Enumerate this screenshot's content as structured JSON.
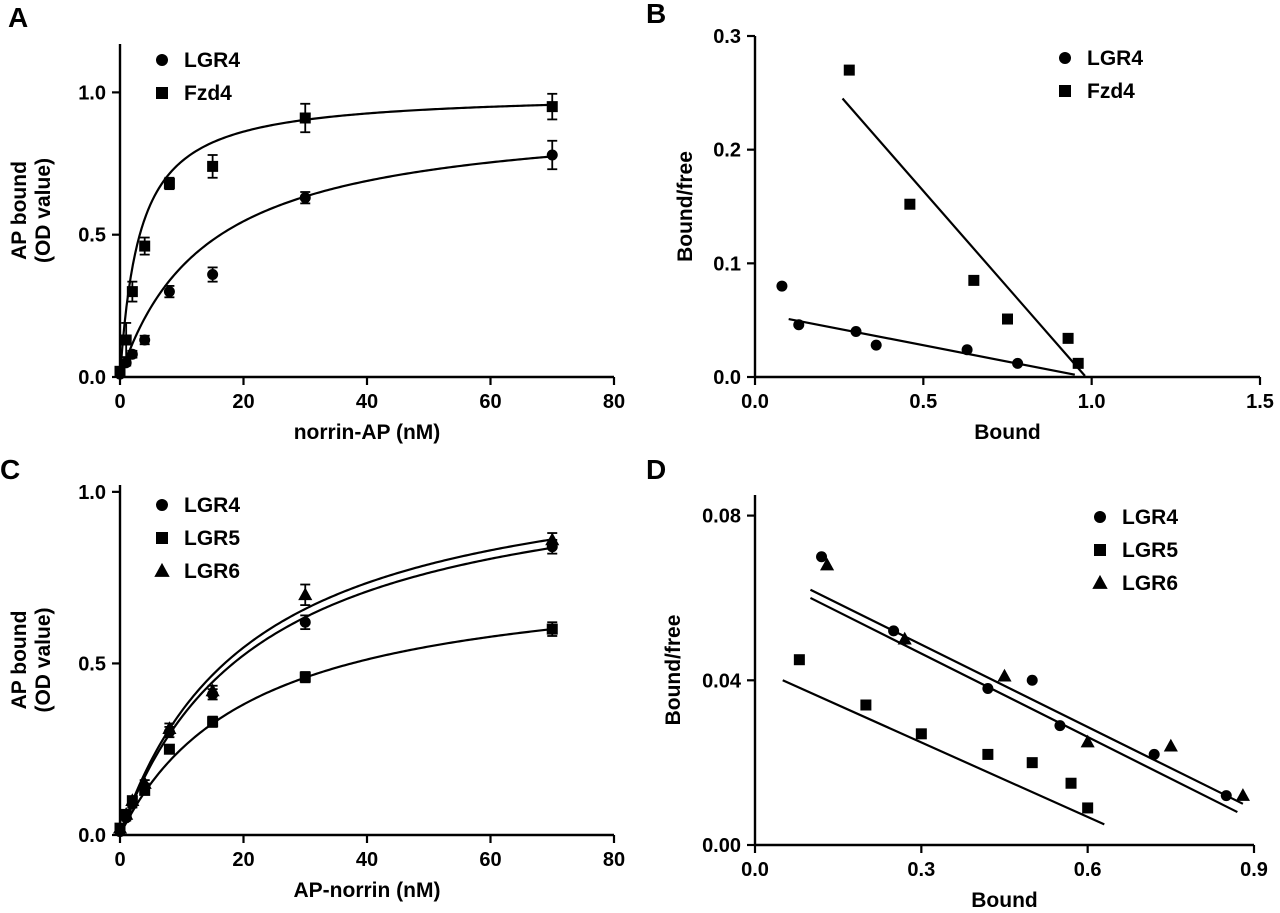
{
  "figure": {
    "background": "#ffffff",
    "foreground": "#000000",
    "description": "Four-panel binding assay figure: saturation binding curves (A, C) and Scatchard plots (B, D)"
  },
  "chart_data": [
    {
      "panel_label": "A",
      "type": "scatter",
      "title": "",
      "xlabel": "norrin-AP (nM)",
      "ylabel": [
        "AP bound",
        "(OD value)"
      ],
      "xlim": [
        0,
        80
      ],
      "ylim": [
        0,
        1.17
      ],
      "xticks": [
        0,
        20,
        40,
        60,
        80
      ],
      "xtick_labels": [
        "0",
        "20",
        "40",
        "60",
        "80"
      ],
      "yticks": [
        0,
        0.5,
        1.0
      ],
      "ytick_labels": [
        "0.0",
        "0.5",
        "1.0"
      ],
      "grid": false,
      "legend_position": "top-left",
      "series": [
        {
          "name": "LGR4",
          "marker": "circle",
          "x": [
            0,
            1,
            2,
            4,
            8,
            15,
            30,
            70
          ],
          "y": [
            0.01,
            0.05,
            0.08,
            0.13,
            0.3,
            0.36,
            0.63,
            0.78
          ],
          "err": [
            0.005,
            0.01,
            0.012,
            0.015,
            0.02,
            0.025,
            0.02,
            0.05
          ],
          "fit": {
            "type": "hyperbola",
            "bmax": 0.93,
            "kd": 14,
            "xmax": 70
          }
        },
        {
          "name": "Fzd4",
          "marker": "square",
          "x": [
            0,
            1,
            2,
            4,
            8,
            15,
            30,
            70
          ],
          "y": [
            0.02,
            0.13,
            0.3,
            0.46,
            0.68,
            0.74,
            0.91,
            0.95
          ],
          "err": [
            0.005,
            0.06,
            0.035,
            0.03,
            0.02,
            0.04,
            0.05,
            0.045
          ],
          "fit": {
            "type": "hyperbola",
            "bmax": 1.0,
            "kd": 3.2,
            "xmax": 70
          }
        }
      ]
    },
    {
      "panel_label": "B",
      "type": "scatter",
      "title": "",
      "xlabel": "Bound",
      "ylabel": [
        "Bound/free"
      ],
      "xlim": [
        0,
        1.5
      ],
      "ylim": [
        0,
        0.3
      ],
      "xticks": [
        0,
        0.5,
        1.0,
        1.5
      ],
      "xtick_labels": [
        "0.0",
        "0.5",
        "1.0",
        "1.5"
      ],
      "yticks": [
        0,
        0.1,
        0.2,
        0.3
      ],
      "ytick_labels": [
        "0.0",
        "0.1",
        "0.2",
        "0.3"
      ],
      "grid": false,
      "legend_position": "top-right",
      "series": [
        {
          "name": "LGR4",
          "marker": "circle",
          "x": [
            0.08,
            0.13,
            0.3,
            0.36,
            0.63,
            0.78
          ],
          "y": [
            0.08,
            0.046,
            0.04,
            0.028,
            0.024,
            0.012
          ],
          "fit": {
            "type": "line",
            "p1": [
              0.1,
              0.051
            ],
            "p2": [
              0.95,
              0.002
            ]
          }
        },
        {
          "name": "Fzd4",
          "marker": "square",
          "x": [
            0.28,
            0.46,
            0.65,
            0.75,
            0.93,
            0.96
          ],
          "y": [
            0.27,
            0.152,
            0.085,
            0.051,
            0.034,
            0.012
          ],
          "fit": {
            "type": "line",
            "p1": [
              0.26,
              0.245
            ],
            "p2": [
              0.98,
              0.001
            ]
          }
        }
      ]
    },
    {
      "panel_label": "C",
      "type": "scatter",
      "title": "",
      "xlabel": "AP-norrin (nM)",
      "ylabel": [
        "AP bound",
        "(OD value)"
      ],
      "xlim": [
        0,
        80
      ],
      "ylim": [
        0,
        1.02
      ],
      "xticks": [
        0,
        20,
        40,
        60,
        80
      ],
      "xtick_labels": [
        "0",
        "20",
        "40",
        "60",
        "80"
      ],
      "yticks": [
        0,
        0.5,
        1.0
      ],
      "ytick_labels": [
        "0.0",
        "0.5",
        "1.0"
      ],
      "grid": false,
      "legend_position": "top-left",
      "series": [
        {
          "name": "LGR4",
          "marker": "circle",
          "x": [
            0,
            1,
            2,
            4,
            8,
            15,
            30,
            70
          ],
          "y": [
            0.01,
            0.05,
            0.09,
            0.14,
            0.3,
            0.41,
            0.62,
            0.84
          ],
          "err": [
            0.005,
            0.008,
            0.01,
            0.01,
            0.015,
            0.015,
            0.02,
            0.02
          ],
          "fit": {
            "type": "hyperbola",
            "bmax": 1.1,
            "kd": 22,
            "xmax": 70
          }
        },
        {
          "name": "LGR5",
          "marker": "square",
          "x": [
            0,
            1,
            2,
            4,
            8,
            15,
            30,
            70
          ],
          "y": [
            0.02,
            0.06,
            0.1,
            0.13,
            0.25,
            0.33,
            0.46,
            0.6
          ],
          "err": [
            0.005,
            0.008,
            0.01,
            0.01,
            0.012,
            0.015,
            0.015,
            0.02
          ],
          "fit": {
            "type": "hyperbola",
            "bmax": 0.78,
            "kd": 21,
            "xmax": 70
          }
        },
        {
          "name": "LGR6",
          "marker": "triangle",
          "x": [
            0,
            1,
            2,
            4,
            8,
            15,
            30,
            70
          ],
          "y": [
            0.02,
            0.06,
            0.1,
            0.15,
            0.31,
            0.42,
            0.7,
            0.86
          ],
          "err": [
            0.005,
            0.008,
            0.01,
            0.01,
            0.015,
            0.015,
            0.03,
            0.02
          ],
          "fit": {
            "type": "hyperbola",
            "bmax": 1.12,
            "kd": 21,
            "xmax": 70
          }
        }
      ]
    },
    {
      "panel_label": "D",
      "type": "scatter",
      "title": "",
      "xlabel": "Bound",
      "ylabel": [
        "Bound/free"
      ],
      "xlim": [
        0,
        0.9
      ],
      "ylim": [
        0,
        0.085
      ],
      "xticks": [
        0,
        0.3,
        0.6,
        0.9
      ],
      "xtick_labels": [
        "0.0",
        "0.3",
        "0.6",
        "0.9"
      ],
      "yticks": [
        0,
        0.04,
        0.08
      ],
      "ytick_labels": [
        "0.00",
        "0.04",
        "0.08"
      ],
      "grid": false,
      "legend_position": "top-right",
      "series": [
        {
          "name": "LGR4",
          "marker": "circle",
          "x": [
            0.12,
            0.25,
            0.42,
            0.5,
            0.55,
            0.72,
            0.85
          ],
          "y": [
            0.07,
            0.052,
            0.038,
            0.04,
            0.029,
            0.022,
            0.012
          ],
          "fit": {
            "type": "line",
            "p1": [
              0.1,
              0.06
            ],
            "p2": [
              0.87,
              0.008
            ]
          }
        },
        {
          "name": "LGR5",
          "marker": "square",
          "x": [
            0.08,
            0.2,
            0.3,
            0.42,
            0.5,
            0.57,
            0.6
          ],
          "y": [
            0.045,
            0.034,
            0.027,
            0.022,
            0.02,
            0.015,
            0.009
          ],
          "fit": {
            "type": "line",
            "p1": [
              0.05,
              0.04
            ],
            "p2": [
              0.63,
              0.005
            ]
          }
        },
        {
          "name": "LGR6",
          "marker": "triangle",
          "x": [
            0.13,
            0.27,
            0.45,
            0.6,
            0.75,
            0.88
          ],
          "y": [
            0.068,
            0.05,
            0.041,
            0.025,
            0.024,
            0.012
          ],
          "fit": {
            "type": "line",
            "p1": [
              0.1,
              0.062
            ],
            "p2": [
              0.88,
              0.01
            ]
          }
        }
      ]
    }
  ]
}
